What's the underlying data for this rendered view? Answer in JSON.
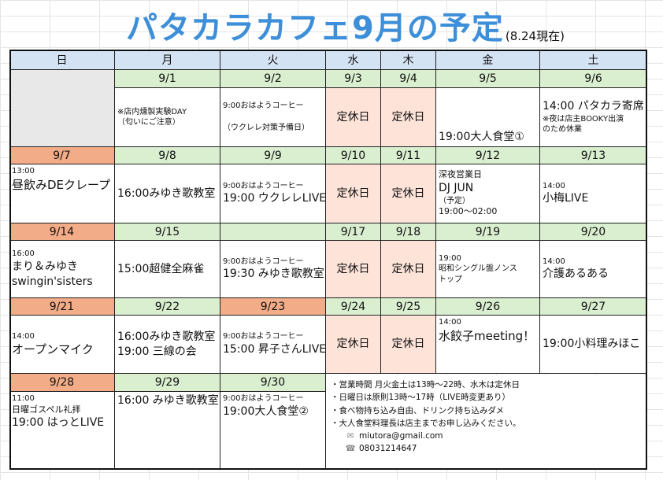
{
  "title": {
    "main": "パタカラカフェ9月の予定",
    "as_of": "(8.24現在)"
  },
  "weekdays": [
    "日",
    "月",
    "火",
    "水",
    "木",
    "金",
    "土"
  ],
  "weeks": [
    {
      "dates": [
        "",
        "9/1",
        "9/2",
        "9/3",
        "9/4",
        "9/5",
        "9/6"
      ],
      "events": [
        {
          "lines": []
        },
        {
          "lines": [
            "※店内燻製実験DAY",
            "（匂いにご注意）"
          ]
        },
        {
          "lines": [
            "9:00おはようコーヒー",
            "（ウクレレ対策予備日）"
          ]
        },
        {
          "lines": [
            "定休日"
          ]
        },
        {
          "lines": [
            "定休日"
          ]
        },
        {
          "lines": [
            "19:00大人食堂①"
          ]
        },
        {
          "lines": [
            "14:00 パタカラ寄席",
            "※夜は店主BOOKY出演",
            "のため休業"
          ]
        }
      ]
    },
    {
      "dates": [
        "9/7",
        "9/8",
        "9/9",
        "9/10",
        "9/11",
        "9/12",
        "9/13"
      ],
      "events": [
        {
          "lines": [
            "13:00",
            "昼飲みDEクレープ"
          ]
        },
        {
          "lines": [
            "16:00みゆき歌教室"
          ]
        },
        {
          "lines": [
            "9:00おはようコーヒー",
            "19:00 ウクレレLIVE"
          ]
        },
        {
          "lines": [
            "定休日"
          ]
        },
        {
          "lines": [
            "定休日"
          ]
        },
        {
          "lines": [
            "深夜営業日",
            "DJ JUN",
            "（予定）",
            "19:00～02:00"
          ]
        },
        {
          "lines": [
            "14:00",
            "小梅LIVE"
          ]
        }
      ]
    },
    {
      "dates": [
        "9/14",
        "9/15",
        "",
        "9/17",
        "9/18",
        "9/19",
        "9/20"
      ],
      "events": [
        {
          "lines": [
            "16:00",
            "まり＆みゆき",
            "swingin'sisters"
          ]
        },
        {
          "lines": [
            "15:00超健全麻雀"
          ]
        },
        {
          "lines": [
            "9:00おはようコーヒー",
            "19:30 みゆき歌教室"
          ]
        },
        {
          "lines": [
            "定休日"
          ]
        },
        {
          "lines": [
            "定休日"
          ]
        },
        {
          "lines": [
            "19:00",
            "昭和シングル盤ノンス",
            "トップ"
          ]
        },
        {
          "lines": [
            "14:00",
            "介護あるある"
          ]
        }
      ]
    },
    {
      "dates": [
        "9/21",
        "9/22",
        "9/23",
        "9/24",
        "9/25",
        "9/26",
        "9/27"
      ],
      "events": [
        {
          "lines": [
            "14:00",
            "オープンマイク"
          ]
        },
        {
          "lines": [
            "16:00みゆき歌教室",
            "19:00 三線の会"
          ]
        },
        {
          "lines": [
            "9:00おはようコーヒー",
            "15:00 昇子さんLIVE"
          ]
        },
        {
          "lines": [
            "定休日"
          ]
        },
        {
          "lines": [
            "定休日"
          ]
        },
        {
          "lines": [
            "14:00",
            "水餃子meeting！"
          ]
        },
        {
          "lines": [
            "19:00小料理みほこ"
          ]
        }
      ]
    },
    {
      "dates": [
        "9/28",
        "9/29",
        "9/30"
      ],
      "events": [
        {
          "lines": [
            "11:00",
            "日曜ゴスペル礼拝",
            "19:00 はっとLIVE"
          ]
        },
        {
          "lines": [
            "16:00 みゆき歌教室"
          ]
        },
        {
          "lines": [
            "9:00おはようコーヒー",
            "19:00大人食堂②"
          ]
        }
      ]
    }
  ],
  "notes": [
    "・営業時間 月火金土は13時～22時、水木は定休日",
    "・日曜日は原則13時～17時（LIVE時変更あり）",
    "・食べ物持ち込み自由、ドリンク持ち込みダメ",
    "・大人食堂料理長は店主までお申し込みください。"
  ],
  "contact": {
    "email": "miutora@gmail.com",
    "phone": "08031214647",
    "email_icon": "envelope-icon",
    "phone_icon": "phone-fax-icon"
  },
  "colors": {
    "title": "#3d8fd9",
    "header_bg": "#d4e3f4",
    "date_bg": "#d9efcf",
    "sunday_date_bg": "#f2ac87",
    "closed_bg": "#fde3d8",
    "empty_bg": "#e8e8e8"
  }
}
